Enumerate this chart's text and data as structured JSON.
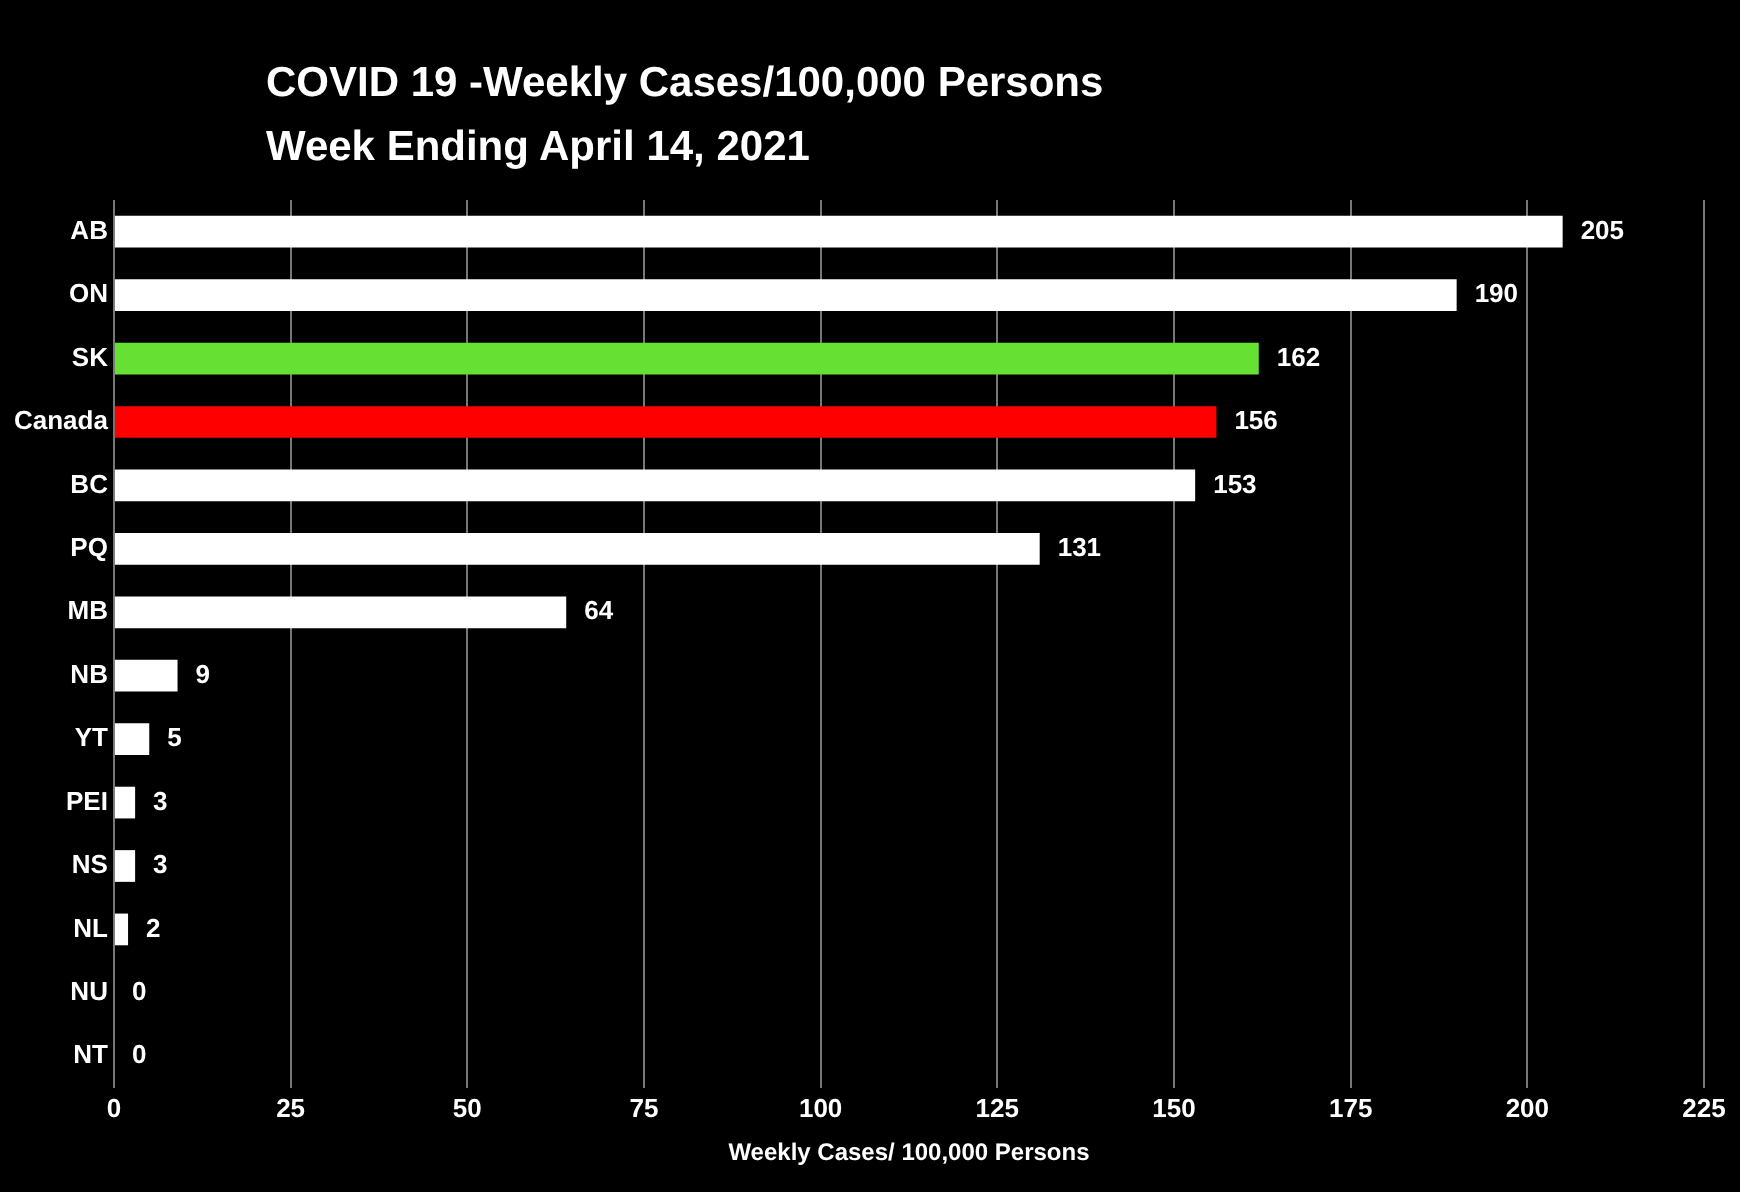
{
  "chart_data": {
    "type": "bar",
    "orientation": "horizontal",
    "title": "COVID 19 -Weekly Cases/100,000 Persons",
    "subtitle": "Week Ending April 14, 2021",
    "xlabel": "Weekly Cases/ 100,000 Persons",
    "categories": [
      "AB",
      "ON",
      "SK",
      "Canada",
      "BC",
      "PQ",
      "MB",
      "NB",
      "YT",
      "PEI",
      "NS",
      "NL",
      "NU",
      "NT"
    ],
    "values": [
      205,
      190,
      162,
      156,
      153,
      131,
      64,
      9,
      5,
      3,
      3,
      2,
      0,
      0
    ],
    "colors": [
      "#ffffff",
      "#ffffff",
      "#66e033",
      "#ff0000",
      "#ffffff",
      "#ffffff",
      "#ffffff",
      "#ffffff",
      "#ffffff",
      "#ffffff",
      "#ffffff",
      "#ffffff",
      "#ffffff",
      "#ffffff"
    ],
    "xlim": [
      0,
      225
    ],
    "xticks": [
      0,
      25,
      50,
      75,
      100,
      125,
      150,
      175,
      200,
      225
    ],
    "grid": "x",
    "data_labels": true
  }
}
